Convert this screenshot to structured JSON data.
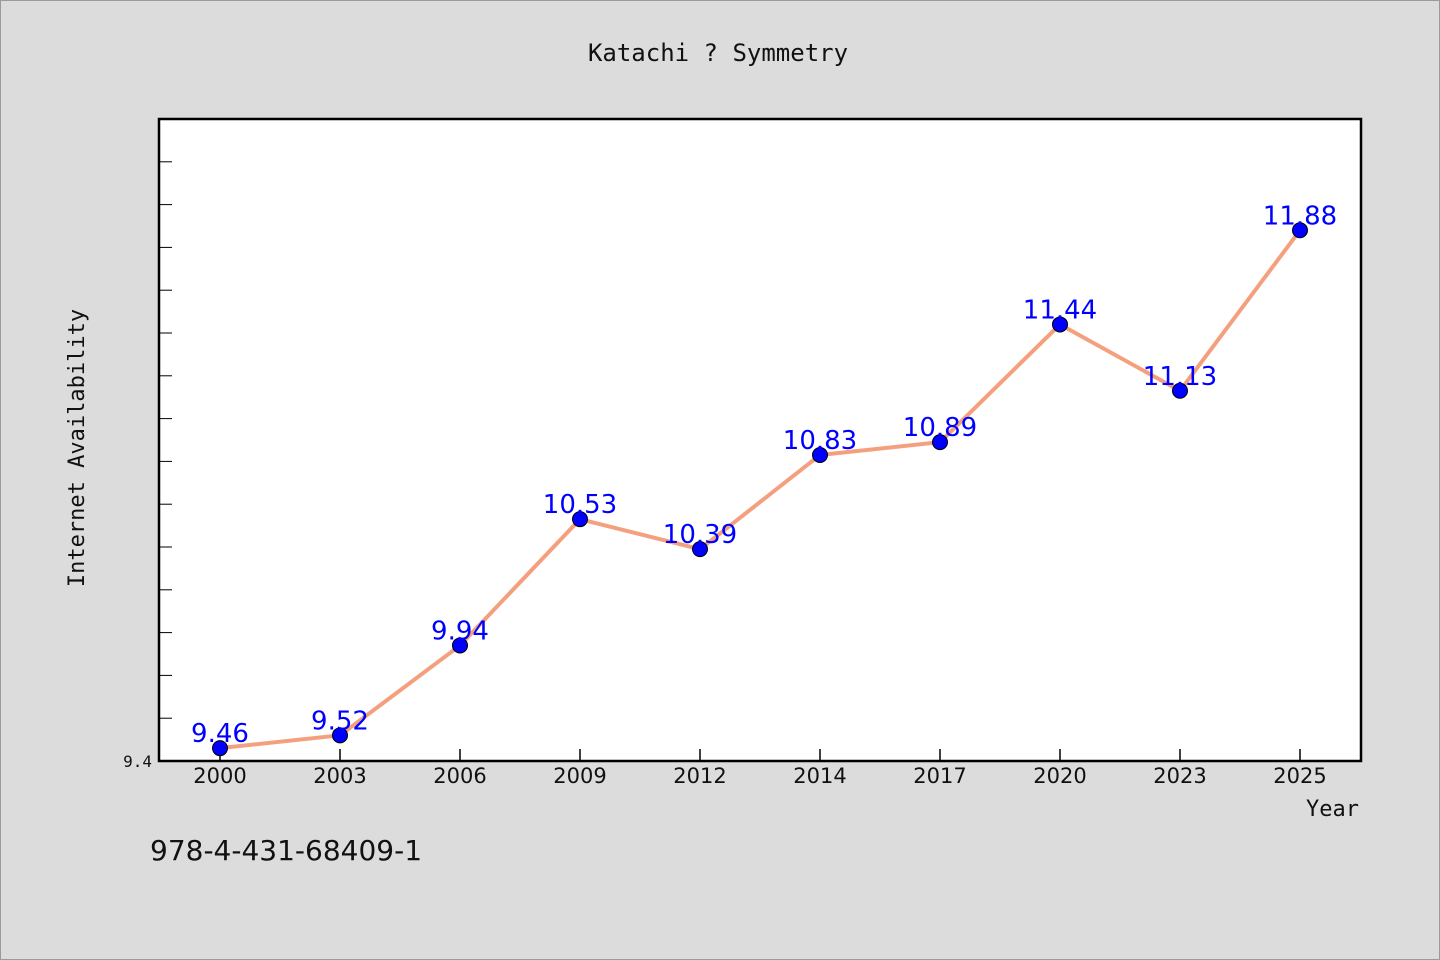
{
  "chart_data": {
    "type": "line",
    "title": "Katachi ? Symmetry",
    "xlabel": "Year",
    "ylabel": "Internet Availability",
    "categories": [
      "2000",
      "2003",
      "2006",
      "2009",
      "2012",
      "2014",
      "2017",
      "2020",
      "2023",
      "2025"
    ],
    "series": [
      {
        "values": [
          9.46,
          9.52,
          9.94,
          10.53,
          10.39,
          10.83,
          10.89,
          11.44,
          11.13,
          11.88
        ],
        "labels": [
          "9.46",
          "9.52",
          "9.94",
          "10.53",
          "10.39",
          "10.83",
          "10.89",
          "11.44",
          "11.13",
          "11.88"
        ],
        "line_color": "#f4a07e",
        "marker_color": "#0000ff",
        "label_color": "#0000ff"
      }
    ],
    "y_tick_label": "9.4",
    "ylim": [
      9.4,
      12.4
    ],
    "y_minor_step": 0.2,
    "grid": false,
    "legend": "none"
  },
  "footer": {
    "isbn": "978-4-431-68409-1"
  },
  "colors": {
    "background": "#dcdcdc",
    "plot_background": "#ffffff",
    "axis": "#000000"
  }
}
